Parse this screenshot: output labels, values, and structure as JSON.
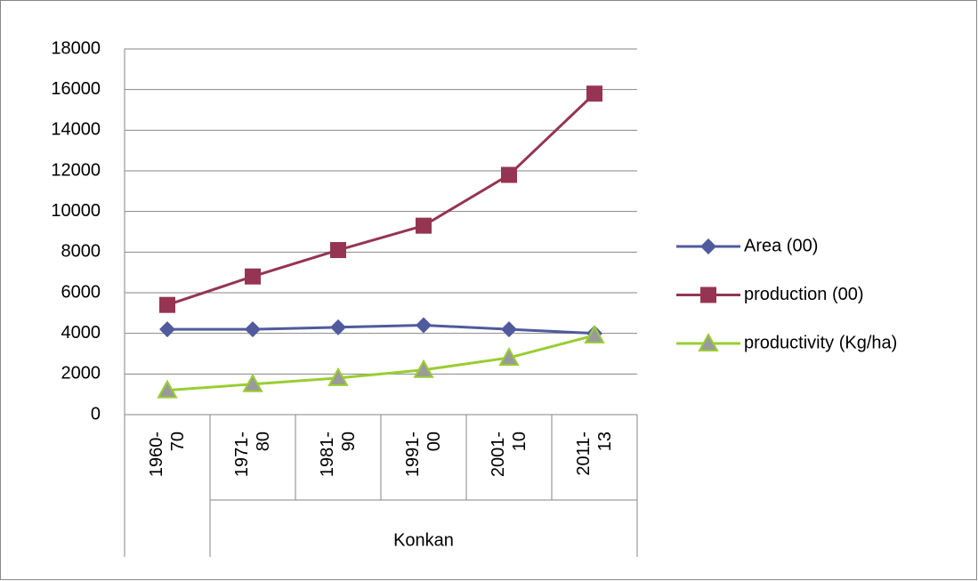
{
  "chart_data": {
    "type": "line",
    "categories": [
      "1960-70",
      "1971-80",
      "1981-90",
      "1991-00",
      "2001-10",
      "2011-13"
    ],
    "group": "Konkan",
    "series": [
      {
        "name": "Area (00)",
        "color": "#4f5b9c",
        "marker": "diamond",
        "values": [
          4200,
          4200,
          4300,
          4400,
          4200,
          4000
        ]
      },
      {
        "name": "production (00)",
        "color": "#953553",
        "marker": "square",
        "values": [
          5400,
          6800,
          8100,
          9300,
          11800,
          15800
        ]
      },
      {
        "name": "productivity (Kg/ha)",
        "color": "#9acd32",
        "marker": "triangle",
        "values": [
          1200,
          1500,
          1800,
          2200,
          2800,
          3900
        ]
      }
    ],
    "ylim": [
      0,
      18000
    ],
    "yticks": [
      0,
      2000,
      4000,
      6000,
      8000,
      10000,
      12000,
      14000,
      16000,
      18000
    ],
    "grid": true,
    "legend": "right"
  }
}
